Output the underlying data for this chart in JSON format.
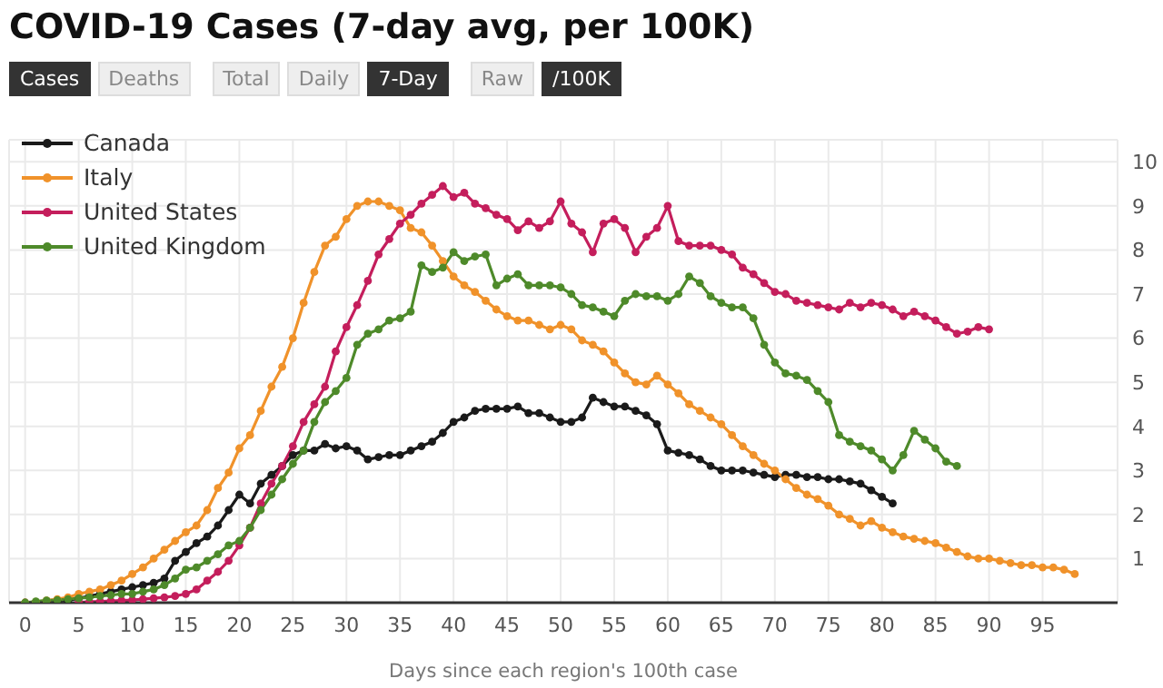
{
  "chart_data": {
    "type": "line",
    "title": "COVID-19 Cases (7-day avg, per 100K)",
    "annotations": [
      "Cases",
      "Deaths",
      "Total",
      "Daily",
      "7-Day",
      "Raw",
      "/100K"
    ],
    "xlabel": "Days since each region's 100th case",
    "x": [
      0,
      1,
      2,
      3,
      4,
      5,
      6,
      7,
      8,
      9,
      10,
      11,
      12,
      13,
      14,
      15,
      16,
      17,
      18,
      19,
      20,
      21,
      22,
      23,
      24,
      25,
      26,
      27,
      28,
      29,
      30,
      31,
      32,
      33,
      34,
      35,
      36,
      37,
      38,
      39,
      40,
      41,
      42,
      43,
      44,
      45,
      46,
      47,
      48,
      49,
      50,
      51,
      52,
      53,
      54,
      55,
      56,
      57,
      58,
      59,
      60,
      61,
      62,
      63,
      64,
      65,
      66,
      67,
      68,
      69,
      70,
      71,
      72,
      73,
      74,
      75,
      76,
      77,
      78,
      79,
      80,
      81,
      82,
      83,
      84,
      85,
      86,
      87,
      88,
      89,
      90,
      91,
      92,
      93,
      94,
      95,
      96,
      97,
      98
    ],
    "xlim": [
      -1.5,
      102
    ],
    "xticks": [
      0,
      5,
      10,
      15,
      20,
      25,
      30,
      35,
      40,
      45,
      50,
      55,
      60,
      65,
      70,
      75,
      80,
      85,
      90,
      95
    ],
    "ylim": [
      0,
      10.5
    ],
    "yticks": [
      1,
      2,
      3,
      4,
      5,
      6,
      7,
      8,
      9,
      10
    ],
    "grid": true,
    "legend": "top left",
    "marker": "circle",
    "line_style": "solid",
    "series": [
      {
        "name": "Canada",
        "color": "#1a1a1a",
        "values": [
          0,
          0.01,
          0.02,
          0.03,
          0.05,
          0.1,
          0.15,
          0.2,
          0.25,
          0.3,
          0.35,
          0.4,
          0.45,
          0.55,
          0.95,
          1.15,
          1.35,
          1.5,
          1.75,
          2.1,
          2.45,
          2.25,
          2.7,
          2.9,
          3.1,
          3.35,
          3.45,
          3.45,
          3.6,
          3.5,
          3.55,
          3.45,
          3.25,
          3.3,
          3.35,
          3.35,
          3.45,
          3.55,
          3.65,
          3.85,
          4.1,
          4.2,
          4.35,
          4.4,
          4.4,
          4.4,
          4.45,
          4.3,
          4.3,
          4.2,
          4.1,
          4.1,
          4.2,
          4.65,
          4.55,
          4.45,
          4.45,
          4.35,
          4.25,
          4.05,
          3.45,
          3.4,
          3.35,
          3.25,
          3.1,
          3.0,
          3.0,
          3.0,
          2.95,
          2.9,
          2.85,
          2.9,
          2.9,
          2.85,
          2.85,
          2.8,
          2.8,
          2.75,
          2.7,
          2.55,
          2.4,
          2.25,
          null,
          null,
          null,
          null,
          null,
          null,
          null,
          null,
          null,
          null,
          null,
          null,
          null,
          null,
          null,
          null,
          null
        ]
      },
      {
        "name": "Italy",
        "color": "#f0922a",
        "values": [
          0,
          0.02,
          0.05,
          0.08,
          0.12,
          0.2,
          0.25,
          0.3,
          0.4,
          0.5,
          0.65,
          0.8,
          1.0,
          1.2,
          1.4,
          1.6,
          1.75,
          2.1,
          2.6,
          2.95,
          3.5,
          3.8,
          4.35,
          4.9,
          5.35,
          6.0,
          6.8,
          7.5,
          8.1,
          8.3,
          8.7,
          9.0,
          9.1,
          9.1,
          9.0,
          8.9,
          8.5,
          8.4,
          8.1,
          7.75,
          7.4,
          7.2,
          7.05,
          6.85,
          6.65,
          6.5,
          6.4,
          6.4,
          6.3,
          6.2,
          6.3,
          6.2,
          5.95,
          5.85,
          5.7,
          5.45,
          5.2,
          5.0,
          4.95,
          5.15,
          4.95,
          4.75,
          4.5,
          4.35,
          4.2,
          4.05,
          3.8,
          3.55,
          3.35,
          3.15,
          3.0,
          2.8,
          2.6,
          2.45,
          2.35,
          2.2,
          2.0,
          1.9,
          1.75,
          1.85,
          1.7,
          1.6,
          1.5,
          1.45,
          1.4,
          1.35,
          1.25,
          1.15,
          1.05,
          1.0,
          1.0,
          0.95,
          0.9,
          0.85,
          0.85,
          0.8,
          0.8,
          0.75,
          0.65
        ]
      },
      {
        "name": "United States",
        "color": "#c41e5c",
        "values": [
          null,
          null,
          null,
          null,
          null,
          0.01,
          0.02,
          0.03,
          0.04,
          0.05,
          0.06,
          0.08,
          0.1,
          0.12,
          0.15,
          0.2,
          0.3,
          0.5,
          0.7,
          0.95,
          1.3,
          1.7,
          2.25,
          2.7,
          3.1,
          3.55,
          4.1,
          4.5,
          4.9,
          5.7,
          6.25,
          6.75,
          7.3,
          7.9,
          8.25,
          8.6,
          8.8,
          9.05,
          9.25,
          9.45,
          9.2,
          9.3,
          9.05,
          8.95,
          8.8,
          8.7,
          8.45,
          8.65,
          8.5,
          8.65,
          9.1,
          8.6,
          8.4,
          7.95,
          8.6,
          8.7,
          8.5,
          7.95,
          8.3,
          8.5,
          9.0,
          8.2,
          8.1,
          8.1,
          8.1,
          8.0,
          7.9,
          7.6,
          7.45,
          7.25,
          7.05,
          7.0,
          6.85,
          6.8,
          6.75,
          6.7,
          6.65,
          6.8,
          6.7,
          6.8,
          6.75,
          6.65,
          6.5,
          6.6,
          6.5,
          6.4,
          6.25,
          6.1,
          6.15,
          6.25,
          6.2,
          null,
          null,
          null,
          null,
          null,
          null,
          null,
          null
        ]
      },
      {
        "name": "United Kingdom",
        "color": "#4e8a2a",
        "values": [
          0,
          0.03,
          0.05,
          0.06,
          0.08,
          0.1,
          0.12,
          0.15,
          0.17,
          0.2,
          0.2,
          0.25,
          0.3,
          0.4,
          0.55,
          0.75,
          0.8,
          0.95,
          1.1,
          1.3,
          1.4,
          1.7,
          2.1,
          2.45,
          2.8,
          3.15,
          3.45,
          4.1,
          4.55,
          4.8,
          5.1,
          5.85,
          6.1,
          6.2,
          6.4,
          6.45,
          6.6,
          7.65,
          7.5,
          7.6,
          7.95,
          7.75,
          7.85,
          7.9,
          7.2,
          7.35,
          7.45,
          7.2,
          7.2,
          7.2,
          7.15,
          7.0,
          6.75,
          6.7,
          6.6,
          6.5,
          6.85,
          7.0,
          6.95,
          6.95,
          6.85,
          7.0,
          7.4,
          7.25,
          6.95,
          6.8,
          6.7,
          6.7,
          6.45,
          5.85,
          5.45,
          5.2,
          5.15,
          5.05,
          4.8,
          4.55,
          3.8,
          3.65,
          3.55,
          3.45,
          3.25,
          3.0,
          3.35,
          3.9,
          3.7,
          3.5,
          3.2,
          3.1,
          null,
          null,
          null,
          null,
          null,
          null,
          null,
          null,
          null,
          null,
          null
        ]
      }
    ]
  }
}
